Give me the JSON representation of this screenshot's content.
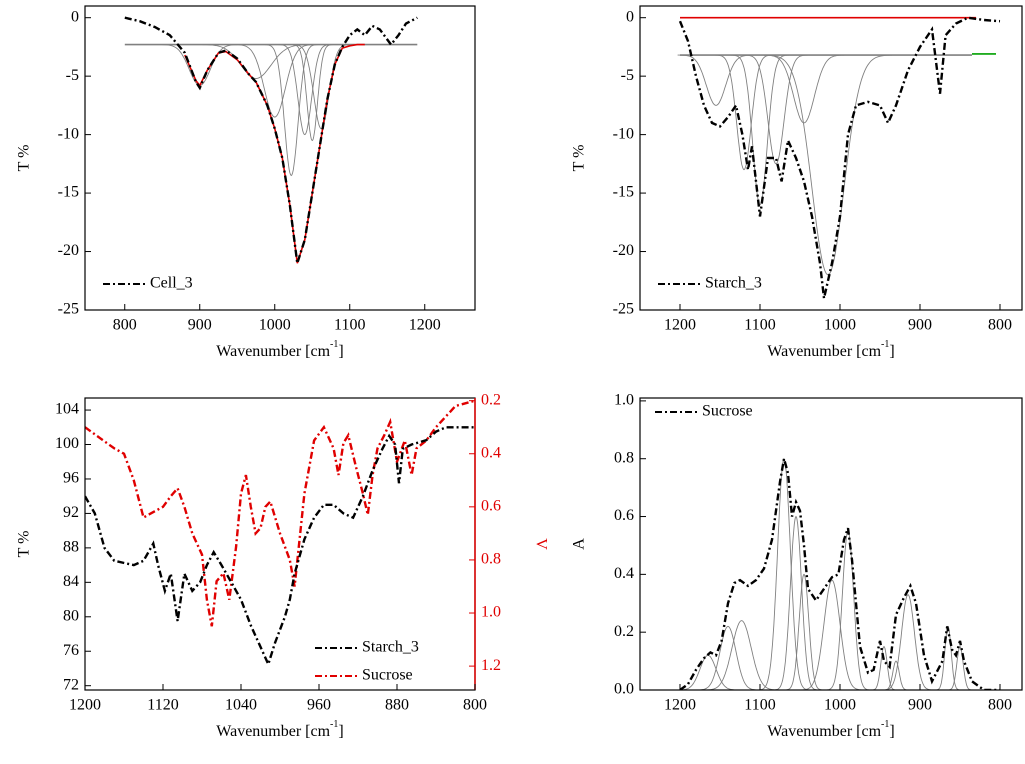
{
  "chart_data": [
    {
      "type": "line",
      "xlabel": [
        "Wavenumber [cm",
        "-1",
        "]"
      ],
      "ylabel": "T %",
      "xlim": [
        747,
        1267
      ],
      "ylim": [
        -25,
        1
      ],
      "xticks": [
        800,
        900,
        1000,
        1100,
        1200
      ],
      "yticks": [
        0,
        -5,
        -10,
        -15,
        -20,
        -25
      ],
      "legend": "bottom-left",
      "series": [
        {
          "name": "Cell_3",
          "color": "#000000",
          "style": "dashdot",
          "x": [
            800,
            820,
            840,
            860,
            880,
            895,
            900,
            910,
            925,
            935,
            950,
            965,
            975,
            990,
            1000,
            1010,
            1020,
            1030,
            1040,
            1050,
            1060,
            1070,
            1080,
            1090,
            1100,
            1110,
            1120,
            1130,
            1140,
            1155,
            1165,
            1175,
            1190
          ],
          "values": [
            0,
            -0.3,
            -0.8,
            -1.5,
            -3,
            -5.5,
            -6,
            -4.5,
            -3,
            -2.8,
            -3.5,
            -4.8,
            -5.5,
            -7.5,
            -9.5,
            -12,
            -16,
            -21,
            -19,
            -15,
            -11,
            -7,
            -4,
            -2.5,
            -1.5,
            -1,
            -1.5,
            -0.7,
            -1,
            -2.3,
            -1.5,
            -0.5,
            0
          ]
        },
        {
          "color": "#e00000",
          "style": "solid",
          "x": [
            880,
            895,
            900,
            910,
            925,
            935,
            950,
            965,
            975,
            990,
            1000,
            1010,
            1020,
            1030,
            1040,
            1050,
            1060,
            1070,
            1080,
            1090,
            1100,
            1110,
            1120
          ],
          "values": [
            -3.2,
            -5.4,
            -5.8,
            -4.5,
            -3,
            -2.9,
            -3.6,
            -4.8,
            -5.5,
            -7.5,
            -9.5,
            -12,
            -16,
            -21,
            -19,
            -15,
            -11,
            -7,
            -4,
            -2.6,
            -2.4,
            -2.3,
            -2.3
          ]
        },
        {
          "color": "#808080",
          "style": "solid",
          "x": [
            800,
            1190
          ],
          "values": [
            -2.3,
            -2.3
          ]
        }
      ],
      "peak_baseline": -2.3,
      "peaks": [
        {
          "center": 900,
          "min": -5.8,
          "sigma": 14
        },
        {
          "center": 975,
          "min": -5.2,
          "sigma": 20
        },
        {
          "center": 1000,
          "min": -8.5,
          "sigma": 14
        },
        {
          "center": 1022,
          "min": -13.5,
          "sigma": 9
        },
        {
          "center": 1040,
          "min": -10,
          "sigma": 9
        },
        {
          "center": 1050,
          "min": -10.5,
          "sigma": 7
        },
        {
          "center": 1062,
          "min": -9.5,
          "sigma": 10
        }
      ]
    },
    {
      "type": "line",
      "xlabel": [
        "Wavenumber [cm",
        "-1",
        "]"
      ],
      "ylabel": "T %",
      "xlim": [
        1250,
        772.5
      ],
      "ylim": [
        -25,
        1
      ],
      "xticks": [
        1200,
        1100,
        1000,
        900,
        800
      ],
      "yticks": [
        0,
        -5,
        -10,
        -15,
        -20,
        -25
      ],
      "legend": "bottom-left",
      "series": [
        {
          "name": "Starch_3",
          "color": "#000000",
          "style": "dashdot",
          "x": [
            1200,
            1190,
            1180,
            1170,
            1160,
            1150,
            1140,
            1130,
            1122,
            1115,
            1110,
            1100,
            1090,
            1080,
            1073,
            1065,
            1055,
            1045,
            1035,
            1025,
            1020,
            1010,
            1000,
            990,
            980,
            965,
            950,
            940,
            930,
            915,
            900,
            885,
            875,
            868,
            855,
            840,
            820,
            800
          ],
          "values": [
            -0.3,
            -2,
            -5,
            -7.5,
            -9,
            -9.3,
            -8.5,
            -7.5,
            -10,
            -13,
            -11,
            -17,
            -12,
            -12,
            -14,
            -10.5,
            -12,
            -14,
            -17,
            -21,
            -24,
            -21,
            -17,
            -10,
            -7.5,
            -7.2,
            -7.5,
            -9,
            -7.5,
            -4.5,
            -2.5,
            -1,
            -6.5,
            -1.5,
            -0.5,
            0,
            -0.2,
            -0.3
          ]
        },
        {
          "color": "#e00000",
          "style": "solid",
          "x": [
            1200,
            830
          ],
          "values": [
            0,
            0
          ]
        },
        {
          "color": "#808080",
          "style": "solid",
          "x": [
            1200,
            835
          ],
          "values": [
            -3.2,
            -3.2
          ]
        },
        {
          "color": "#00a000",
          "style": "solid",
          "x": [
            835,
            805
          ],
          "values": [
            -3.1,
            -3.1
          ]
        }
      ],
      "peak_baseline": -3.2,
      "peaks": [
        {
          "center": 1155,
          "min": -7.5,
          "sigma": 12
        },
        {
          "center": 1120,
          "min": -13,
          "sigma": 9
        },
        {
          "center": 1100,
          "min": -16,
          "sigma": 9
        },
        {
          "center": 1080,
          "min": -12.5,
          "sigma": 10
        },
        {
          "center": 1045,
          "min": -9,
          "sigma": 13
        },
        {
          "center": 1015,
          "min": -22,
          "sigma": 20
        }
      ]
    },
    {
      "type": "line",
      "xlabel": [
        "Wavenumber [cm",
        "-1",
        "]"
      ],
      "ylabel": "T %",
      "y2label": "V",
      "y2color": "#e00000",
      "xlim": [
        1200,
        800
      ],
      "ylim": [
        71.5,
        105.4
      ],
      "y2lim": [
        1.29,
        0.19
      ],
      "xticks": [
        1200,
        1120,
        1040,
        960,
        880,
        800
      ],
      "yticks": [
        72,
        76,
        80,
        84,
        88,
        92,
        96,
        100,
        104
      ],
      "y2ticks": [
        0.2,
        0.4,
        0.6,
        0.8,
        {
          "value": 1,
          "label": "1.0"
        },
        1.2
      ],
      "legend": "bottom-right",
      "series": [
        {
          "name": "Starch_3",
          "color": "#000000",
          "style": "dashdot",
          "x": [
            1200,
            1190,
            1180,
            1170,
            1150,
            1140,
            1130,
            1125,
            1118,
            1112,
            1105,
            1098,
            1090,
            1082,
            1075,
            1068,
            1060,
            1050,
            1040,
            1030,
            1020,
            1012,
            1005,
            995,
            990,
            985,
            975,
            965,
            955,
            945,
            935,
            925,
            915,
            905,
            895,
            888,
            882,
            878,
            874,
            865,
            850,
            840,
            830,
            800
          ],
          "values": [
            94,
            92,
            88,
            86.5,
            86,
            86.5,
            88.5,
            86,
            83,
            85,
            79.5,
            85,
            83,
            84,
            86,
            87.5,
            86,
            84,
            82,
            79,
            76.5,
            74.5,
            77,
            80,
            82,
            85,
            89,
            91.5,
            93,
            93,
            92,
            91.5,
            94,
            97,
            99.5,
            101,
            100,
            95.5,
            99.5,
            100,
            100.5,
            101.5,
            102,
            102
          ]
        },
        {
          "name": "Sucrose",
          "color": "#e00000",
          "style": "dashdot",
          "axis": "y2",
          "x": [
            1200,
            1185,
            1170,
            1160,
            1150,
            1140,
            1130,
            1120,
            1112,
            1105,
            1098,
            1090,
            1080,
            1075,
            1070,
            1065,
            1058,
            1052,
            1045,
            1040,
            1035,
            1030,
            1025,
            1020,
            1015,
            1010,
            1000,
            990,
            985,
            975,
            965,
            955,
            945,
            940,
            935,
            930,
            922,
            915,
            910,
            905,
            900,
            893,
            887,
            880,
            872,
            865,
            860,
            850,
            840,
            820,
            800
          ],
          "values": [
            0.3,
            0.34,
            0.38,
            0.4,
            0.5,
            0.64,
            0.62,
            0.6,
            0.56,
            0.53,
            0.6,
            0.7,
            0.78,
            0.95,
            1.05,
            0.88,
            0.85,
            0.95,
            0.75,
            0.55,
            0.48,
            0.6,
            0.7,
            0.68,
            0.6,
            0.58,
            0.7,
            0.8,
            0.9,
            0.55,
            0.35,
            0.3,
            0.38,
            0.48,
            0.36,
            0.33,
            0.45,
            0.55,
            0.63,
            0.48,
            0.38,
            0.33,
            0.28,
            0.43,
            0.35,
            0.48,
            0.38,
            0.35,
            0.3,
            0.22,
            0.2
          ]
        }
      ]
    },
    {
      "type": "line",
      "xlabel": [
        "Wavenumber [cm",
        "-1",
        "]"
      ],
      "ylabel": "A",
      "xlim": [
        1250,
        772.5
      ],
      "ylim": [
        0,
        1.01
      ],
      "xticks": [
        1200,
        1100,
        1000,
        900,
        800
      ],
      "yticks": [
        {
          "value": 0,
          "label": "0.0"
        },
        0.2,
        0.4,
        0.6,
        0.8,
        {
          "value": 1,
          "label": "1.0"
        }
      ],
      "legend": "top-left",
      "series": [
        {
          "name": "Sucrose",
          "color": "#000000",
          "style": "dashdot",
          "x": [
            1200,
            1190,
            1180,
            1170,
            1162,
            1155,
            1148,
            1140,
            1132,
            1125,
            1115,
            1105,
            1095,
            1085,
            1075,
            1070,
            1065,
            1060,
            1055,
            1050,
            1045,
            1040,
            1030,
            1020,
            1010,
            1002,
            995,
            990,
            985,
            975,
            965,
            958,
            950,
            945,
            938,
            930,
            920,
            912,
            905,
            895,
            885,
            872,
            866,
            860,
            855,
            850,
            845,
            835,
            820,
            800
          ],
          "values": [
            0,
            0.02,
            0.07,
            0.11,
            0.13,
            0.12,
            0.17,
            0.3,
            0.37,
            0.38,
            0.36,
            0.38,
            0.42,
            0.52,
            0.72,
            0.8,
            0.75,
            0.6,
            0.65,
            0.62,
            0.5,
            0.35,
            0.31,
            0.35,
            0.39,
            0.4,
            0.52,
            0.56,
            0.45,
            0.15,
            0.06,
            0.07,
            0.17,
            0.1,
            0.08,
            0.26,
            0.32,
            0.36,
            0.3,
            0.12,
            0.03,
            0.1,
            0.22,
            0.14,
            0.12,
            0.17,
            0.1,
            0.03,
            0,
            0
          ]
        }
      ],
      "peak_baseline": 0,
      "peaks": [
        {
          "center": 1165,
          "min": 0.12,
          "sigma": 10
        },
        {
          "center": 1140,
          "min": 0.22,
          "sigma": 10
        },
        {
          "center": 1123,
          "min": 0.24,
          "sigma": 12
        },
        {
          "center": 1070,
          "min": 0.8,
          "sigma": 8
        },
        {
          "center": 1055,
          "min": 0.6,
          "sigma": 7
        },
        {
          "center": 1045,
          "min": 0.4,
          "sigma": 6
        },
        {
          "center": 1010,
          "min": 0.38,
          "sigma": 10
        },
        {
          "center": 990,
          "min": 0.55,
          "sigma": 7
        },
        {
          "center": 945,
          "min": 0.15,
          "sigma": 4
        },
        {
          "center": 930,
          "min": 0.1,
          "sigma": 4
        },
        {
          "center": 915,
          "min": 0.33,
          "sigma": 8
        },
        {
          "center": 865,
          "min": 0.22,
          "sigma": 4
        },
        {
          "center": 850,
          "min": 0.15,
          "sigma": 4
        }
      ]
    }
  ]
}
